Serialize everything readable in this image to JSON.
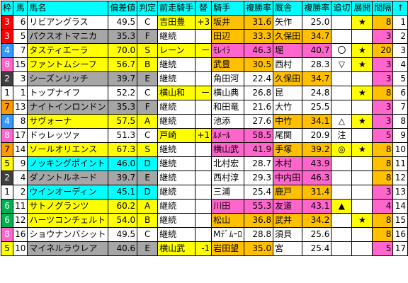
{
  "headers": [
    "枠",
    "馬",
    "馬名",
    "偏差値",
    "判定",
    "前走騎手",
    "替",
    "騎手",
    "複勝率",
    "厩舎",
    "複勝率",
    "追切",
    "展開",
    "間隔",
    "↑"
  ],
  "colors": {
    "waku": {
      "1": "#ffffff",
      "2": "#404040",
      "3": "#ff0000",
      "4": "#3399ff",
      "5": "#ffff00",
      "6": "#00b050",
      "7": "#ff9900",
      "8": "#ff66cc"
    },
    "waku_text": {
      "1": "#000000",
      "2": "#ffffff",
      "3": "#ffffff",
      "4": "#ffffff",
      "5": "#000000",
      "6": "#ffffff",
      "7": "#000000",
      "8": "#ffffff"
    },
    "yellow": "#ffff00",
    "gray": "#a6a6a6",
    "cyan": "#00ffff",
    "pink": "#ff66cc",
    "orange": "#ffc000",
    "white": "#ffffff"
  },
  "rows": [
    {
      "waku": "3",
      "uma": "6",
      "name": "リビアングラス",
      "score": "49.5",
      "grade": "C",
      "prev_jockey": "吉田豊",
      "change": "+3",
      "jockey": "坂井",
      "j_rate": "31.6",
      "stable": "矢作",
      "s_rate": "25.0",
      "oikiri": "",
      "tenkai": "★",
      "interval": "8",
      "trend": "1"
    },
    {
      "waku": "3",
      "uma": "5",
      "name": "パクスオトマニカ",
      "score": "35.3",
      "grade": "F",
      "prev_jockey": "継続",
      "change": "",
      "jockey": "田辺",
      "j_rate": "33.3",
      "stable": "久保田",
      "s_rate": "34.7",
      "oikiri": "",
      "tenkai": "",
      "interval": "3",
      "trend": "2"
    },
    {
      "waku": "4",
      "uma": "7",
      "name": "タスティエーラ",
      "score": "70.0",
      "grade": "S",
      "prev_jockey": "レーン",
      "change": "ー",
      "jockey": "ﾓﾚｲﾗ",
      "j_rate": "46.3",
      "stable": "堀",
      "s_rate": "40.7",
      "oikiri": "〇",
      "tenkai": "★",
      "interval": "20",
      "trend": "3"
    },
    {
      "waku": "8",
      "uma": "15",
      "name": "ファントムシーフ",
      "score": "56.7",
      "grade": "B",
      "prev_jockey": "継続",
      "change": "",
      "jockey": "武豊",
      "j_rate": "30.5",
      "stable": "西村",
      "s_rate": "28.3",
      "oikiri": "▽",
      "tenkai": "★",
      "interval": "3",
      "trend": "4"
    },
    {
      "waku": "2",
      "uma": "3",
      "name": "シーズンリッチ",
      "score": "39.7",
      "grade": "E",
      "prev_jockey": "継続",
      "change": "",
      "jockey": "角田河",
      "j_rate": "22.4",
      "stable": "久保田",
      "s_rate": "34.7",
      "oikiri": "",
      "tenkai": "",
      "interval": "3",
      "trend": "5"
    },
    {
      "waku": "1",
      "uma": "1",
      "name": "トップナイフ",
      "score": "52.2",
      "grade": "C",
      "prev_jockey": "横山和",
      "change": "ー",
      "jockey": "横山典",
      "j_rate": "26.8",
      "stable": "昆",
      "s_rate": "24.8",
      "oikiri": "",
      "tenkai": "★",
      "interval": "8",
      "trend": "6"
    },
    {
      "waku": "7",
      "uma": "13",
      "name": "ナイトインロンドン",
      "score": "35.3",
      "grade": "F",
      "prev_jockey": "継続",
      "change": "",
      "jockey": "和田竜",
      "j_rate": "21.6",
      "stable": "大竹",
      "s_rate": "25.5",
      "oikiri": "",
      "tenkai": "",
      "interval": "3",
      "trend": "7"
    },
    {
      "waku": "4",
      "uma": "8",
      "name": "サヴォーナ",
      "score": "57.5",
      "grade": "A",
      "prev_jockey": "継続",
      "change": "",
      "jockey": "池添",
      "j_rate": "27.6",
      "stable": "中竹",
      "s_rate": "34.1",
      "oikiri": "△",
      "tenkai": "★",
      "interval": "3",
      "trend": "8"
    },
    {
      "waku": "8",
      "uma": "17",
      "name": "ドゥレッツァ",
      "score": "51.3",
      "grade": "C",
      "prev_jockey": "戸崎",
      "change": "+1",
      "jockey": "ﾙﾒｰﾙ",
      "j_rate": "58.5",
      "stable": "尾関",
      "s_rate": "20.9",
      "oikiri": "注",
      "tenkai": "",
      "interval": "5",
      "trend": "9"
    },
    {
      "waku": "7",
      "uma": "14",
      "name": "ソールオリエンス",
      "score": "67.3",
      "grade": "S",
      "prev_jockey": "継続",
      "change": "",
      "jockey": "横山武",
      "j_rate": "41.9",
      "stable": "手塚",
      "s_rate": "39.2",
      "oikiri": "◎",
      "tenkai": "★",
      "interval": "8",
      "trend": "10"
    },
    {
      "waku": "5",
      "uma": "9",
      "name": "ノッキングポイント",
      "score": "46.0",
      "grade": "D",
      "prev_jockey": "継続",
      "change": "",
      "jockey": "北村宏",
      "j_rate": "28.7",
      "stable": "木村",
      "s_rate": "43.9",
      "oikiri": "",
      "tenkai": "",
      "interval": "8",
      "trend": "11"
    },
    {
      "waku": "2",
      "uma": "4",
      "name": "ダノントルネード",
      "score": "39.7",
      "grade": "E",
      "prev_jockey": "継続",
      "change": "",
      "jockey": "西村淳",
      "j_rate": "29.3",
      "stable": "中内田",
      "s_rate": "46.3",
      "oikiri": "",
      "tenkai": "",
      "interval": "8",
      "trend": "12"
    },
    {
      "waku": "1",
      "uma": "2",
      "name": "ウインオーディン",
      "score": "45.1",
      "grade": "D",
      "prev_jockey": "継続",
      "change": "",
      "jockey": "三浦",
      "j_rate": "25.4",
      "stable": "鹿戸",
      "s_rate": "31.4",
      "oikiri": "",
      "tenkai": "",
      "interval": "3",
      "trend": "13"
    },
    {
      "waku": "6",
      "uma": "11",
      "name": "サトノグランツ",
      "score": "60.2",
      "grade": "A",
      "prev_jockey": "継続",
      "change": "",
      "jockey": "川田",
      "j_rate": "55.3",
      "stable": "友道",
      "s_rate": "43.1",
      "oikiri": "▲",
      "tenkai": "",
      "interval": "4",
      "trend": "14"
    },
    {
      "waku": "6",
      "uma": "12",
      "name": "ハーツコンチェルト",
      "score": "54.0",
      "grade": "B",
      "prev_jockey": "継続",
      "change": "",
      "jockey": "松山",
      "j_rate": "36.8",
      "stable": "武井",
      "s_rate": "34.2",
      "oikiri": "",
      "tenkai": "★",
      "interval": "8",
      "trend": "15"
    },
    {
      "waku": "8",
      "uma": "16",
      "name": "ショウナンバシット",
      "score": "49.5",
      "grade": "C",
      "prev_jockey": "継続",
      "change": "",
      "jockey": "Mﾃﾞﾑｰﾛ",
      "j_rate": "28.8",
      "stable": "須貝",
      "s_rate": "25.6",
      "oikiri": "",
      "tenkai": "",
      "interval": "8",
      "trend": "16"
    },
    {
      "waku": "5",
      "uma": "10",
      "name": "マイネルラウレア",
      "score": "40.6",
      "grade": "E",
      "prev_jockey": "横山武",
      "change": "-1",
      "jockey": "岩田望",
      "j_rate": "35.0",
      "stable": "宮",
      "s_rate": "25.4",
      "oikiri": "",
      "tenkai": "",
      "interval": "5",
      "trend": "17"
    }
  ]
}
